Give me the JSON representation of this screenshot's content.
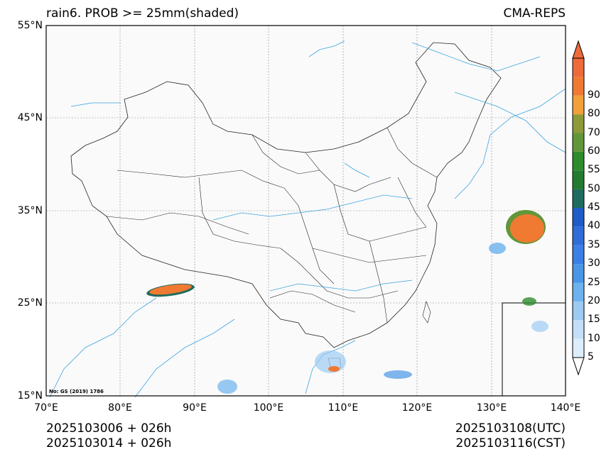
{
  "title_left": "rain6. PROB >= 25mm(shaded)",
  "title_right": "CMA-REPS",
  "lat_labels": [
    "55°N",
    "45°N",
    "35°N",
    "25°N",
    "15°N"
  ],
  "lon_labels": [
    "70°E",
    "80°E",
    "90°E",
    "100°E",
    "110°E",
    "120°E",
    "130°E",
    "140°E"
  ],
  "footer": {
    "init_utc": "2025103006  +  026h",
    "init_cst": "2025103014  +  026h",
    "valid_utc": "2025103108(UTC)",
    "valid_cst": "2025103116(CST)"
  },
  "map_note": "No: GS (2019) 1786",
  "colorbar": {
    "levels": [
      "5",
      "10",
      "15",
      "20",
      "25",
      "30",
      "35",
      "40",
      "45",
      "50",
      "55",
      "60",
      "70",
      "80",
      "90"
    ],
    "colors": [
      "#ddeefb",
      "#c4def7",
      "#9ccaf2",
      "#6cb2ee",
      "#4a96e6",
      "#3a7fe6",
      "#2f6ed8",
      "#1e5cc8",
      "#1f6b5f",
      "#247a2f",
      "#2e8c2e",
      "#62963a",
      "#8e9a3a",
      "#f3a03a",
      "#f07a32",
      "#ee6a3a"
    ]
  },
  "colors": {
    "border": "#222222",
    "river": "#3aa4e0",
    "grid": "#888888",
    "land_bg": "#fafafa"
  }
}
